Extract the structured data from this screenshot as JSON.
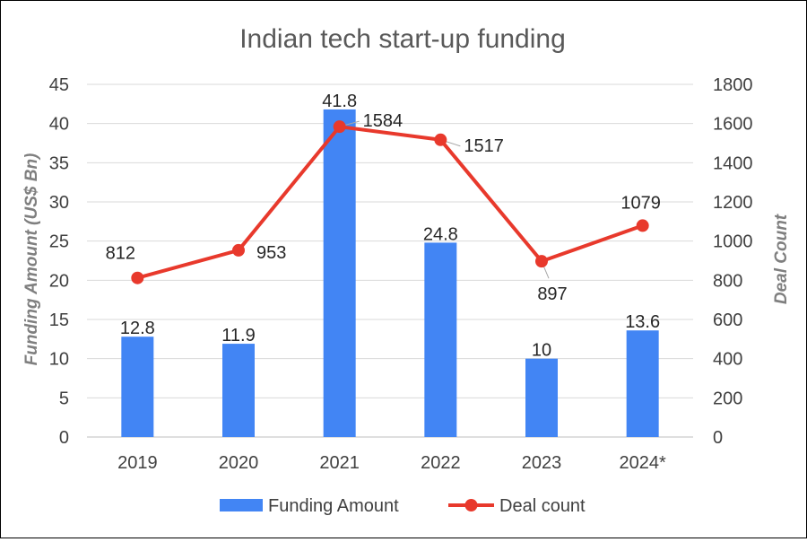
{
  "chart_data": {
    "type": "bar",
    "title": "Indian tech start-up funding",
    "categories": [
      "2019",
      "2020",
      "2021",
      "2022",
      "2023",
      "2024*"
    ],
    "ylabel_left": "Funding Amount (US$ Bn)",
    "ylabel_right": "Deal Count",
    "ylim_left": [
      0,
      45
    ],
    "ylim_right": [
      0,
      1800
    ],
    "yticks_left": [
      "0",
      "5",
      "10",
      "15",
      "20",
      "25",
      "30",
      "35",
      "40",
      "45"
    ],
    "yticks_right": [
      "0",
      "200",
      "400",
      "600",
      "800",
      "1000",
      "1200",
      "1400",
      "1600",
      "1800"
    ],
    "grid": true,
    "legend_position": "bottom",
    "series": [
      {
        "name": "Funding Amount",
        "type": "bar",
        "axis": "left",
        "color": "#4285F4",
        "values": [
          12.8,
          11.9,
          41.8,
          24.8,
          10,
          13.6
        ],
        "labels": [
          "12.8",
          "11.9",
          "41.8",
          "24.8",
          "10",
          "13.6"
        ]
      },
      {
        "name": "Deal count",
        "type": "line",
        "axis": "right",
        "color": "#E8392C",
        "values": [
          812,
          953,
          1584,
          1517,
          897,
          1079
        ],
        "labels": [
          "812",
          "953",
          "1584",
          "1517",
          "897",
          "1079"
        ]
      }
    ]
  }
}
